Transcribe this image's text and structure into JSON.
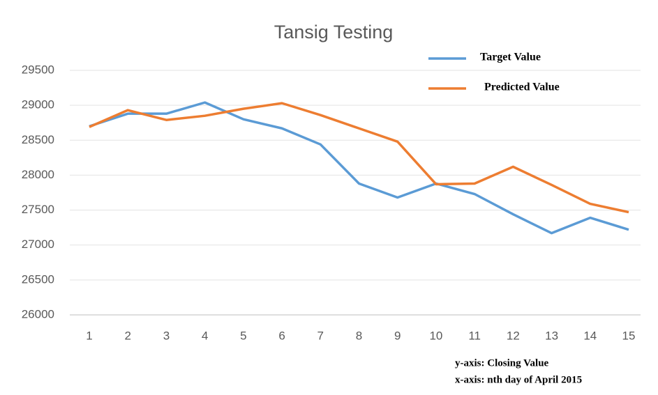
{
  "chart_data": {
    "type": "line",
    "title": "Tansig Testing",
    "categories": [
      "1",
      "2",
      "3",
      "4",
      "5",
      "6",
      "7",
      "8",
      "9",
      "10",
      "11",
      "12",
      "13",
      "14",
      "15"
    ],
    "series": [
      {
        "name": "Target Value",
        "color": "#5b9bd5",
        "values": [
          28700,
          28880,
          28880,
          29040,
          28800,
          28670,
          28440,
          27880,
          27680,
          27880,
          27730,
          27440,
          27170,
          27390,
          27220
        ]
      },
      {
        "name": "Predicted Value",
        "color": "#ed7d31",
        "values": [
          28690,
          28930,
          28790,
          28850,
          28950,
          29030,
          28860,
          28670,
          28480,
          27870,
          27880,
          28120,
          27860,
          27590,
          27470
        ]
      }
    ],
    "ylim": [
      26000,
      29500
    ],
    "yticks": [
      26000,
      26500,
      27000,
      27500,
      28000,
      28500,
      29000,
      29500
    ],
    "grid": true,
    "legend": "top-right",
    "annotations": [
      "y-axis: Closing Value",
      "x-axis: nth day of April 2015"
    ]
  }
}
